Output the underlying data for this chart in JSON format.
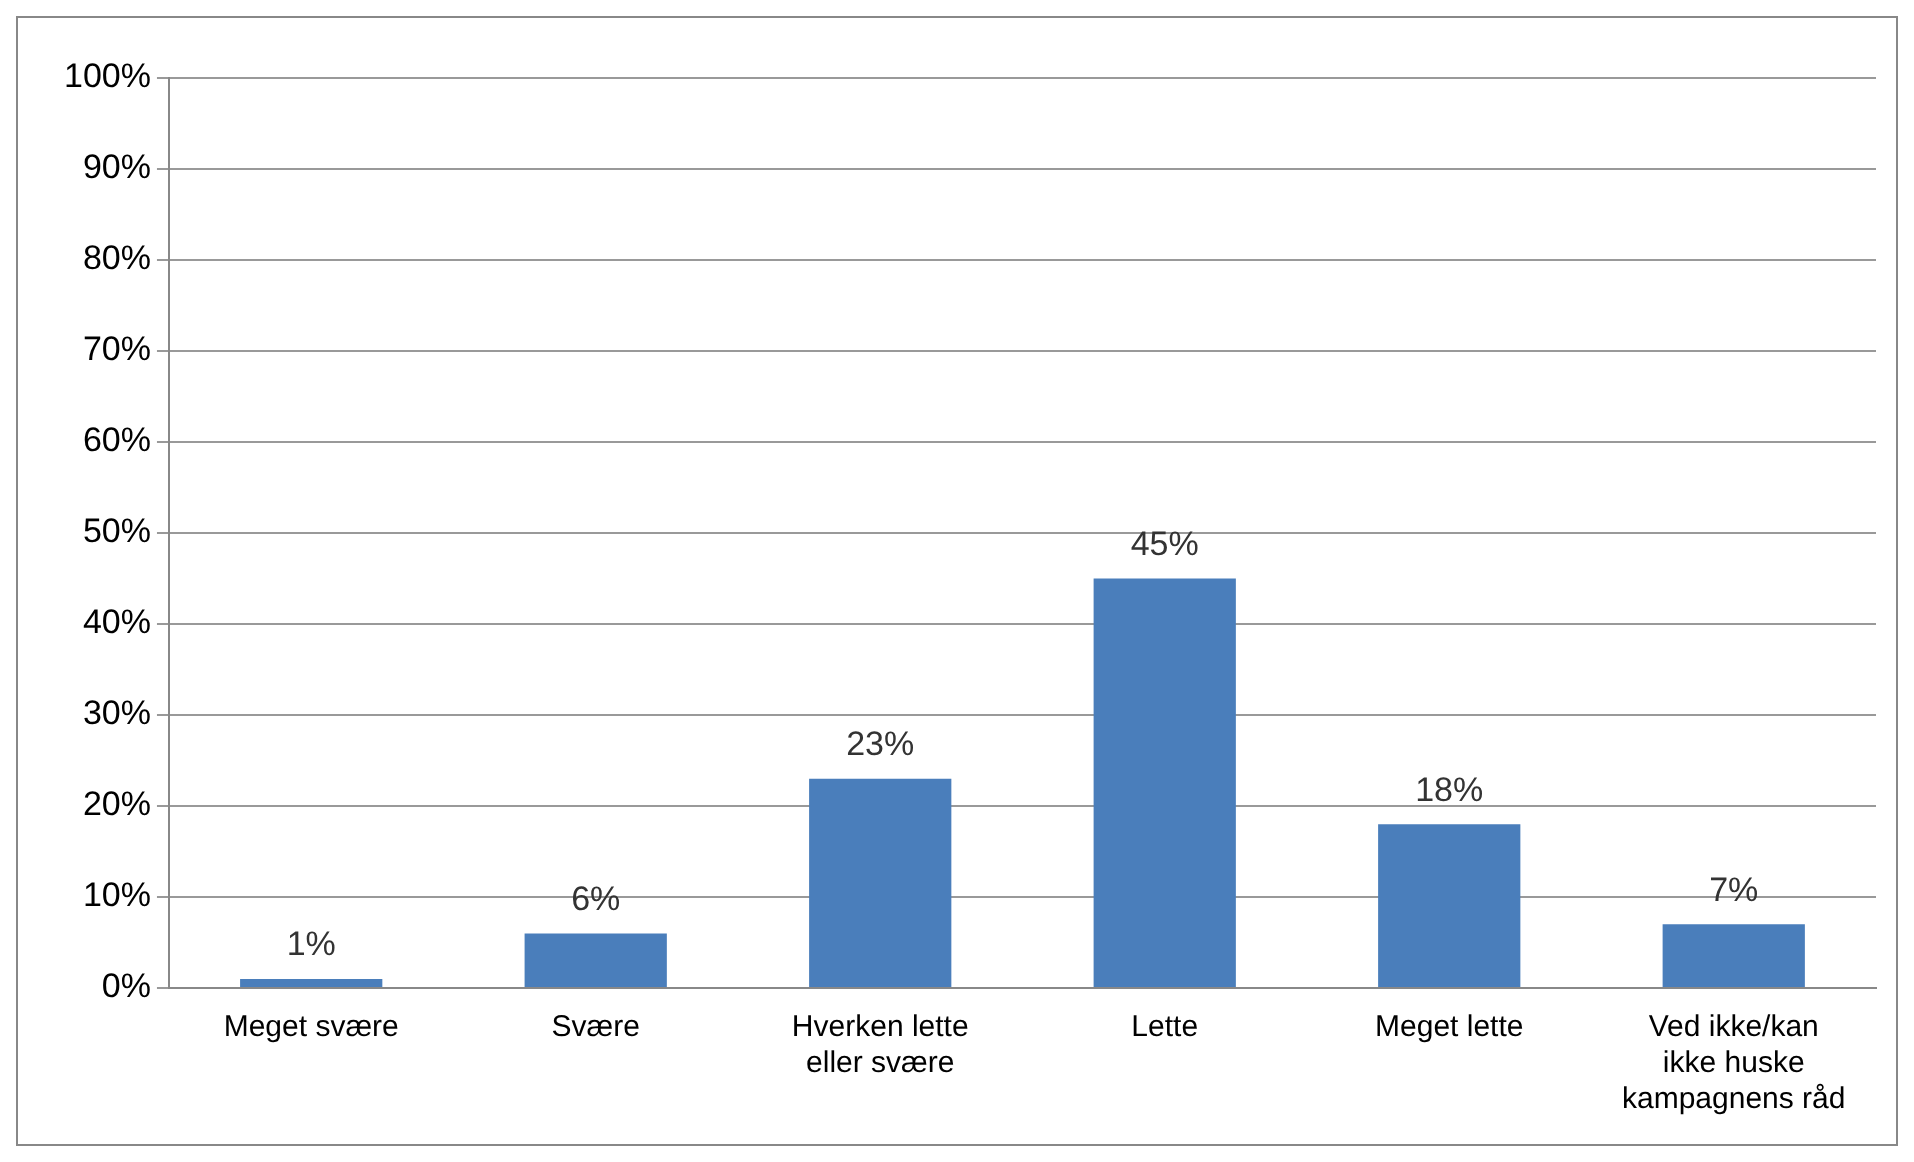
{
  "chart_data": {
    "type": "bar",
    "categories": [
      "Meget svære",
      "Svære",
      "Hverken lette eller svære",
      "Lette",
      "Meget lette",
      "Ved ikke/kan ikke huske kampagnens råd"
    ],
    "values": [
      1,
      6,
      23,
      45,
      18,
      7
    ],
    "value_labels": [
      "1%",
      "6%",
      "23%",
      "45%",
      "18%",
      "7%"
    ],
    "color": "#4a7ebb",
    "ylim": [
      0,
      100
    ],
    "yticks": [
      {
        "value": 0,
        "label": "0%"
      },
      {
        "value": 10,
        "label": "10%"
      },
      {
        "value": 20,
        "label": "20%"
      },
      {
        "value": 30,
        "label": "30%"
      },
      {
        "value": 40,
        "label": "40%"
      },
      {
        "value": 50,
        "label": "50%"
      },
      {
        "value": 60,
        "label": "60%"
      },
      {
        "value": 70,
        "label": "70%"
      },
      {
        "value": 80,
        "label": "80%"
      },
      {
        "value": 90,
        "label": "90%"
      },
      {
        "value": 100,
        "label": "100%"
      }
    ],
    "grid": "y",
    "legend": false
  }
}
